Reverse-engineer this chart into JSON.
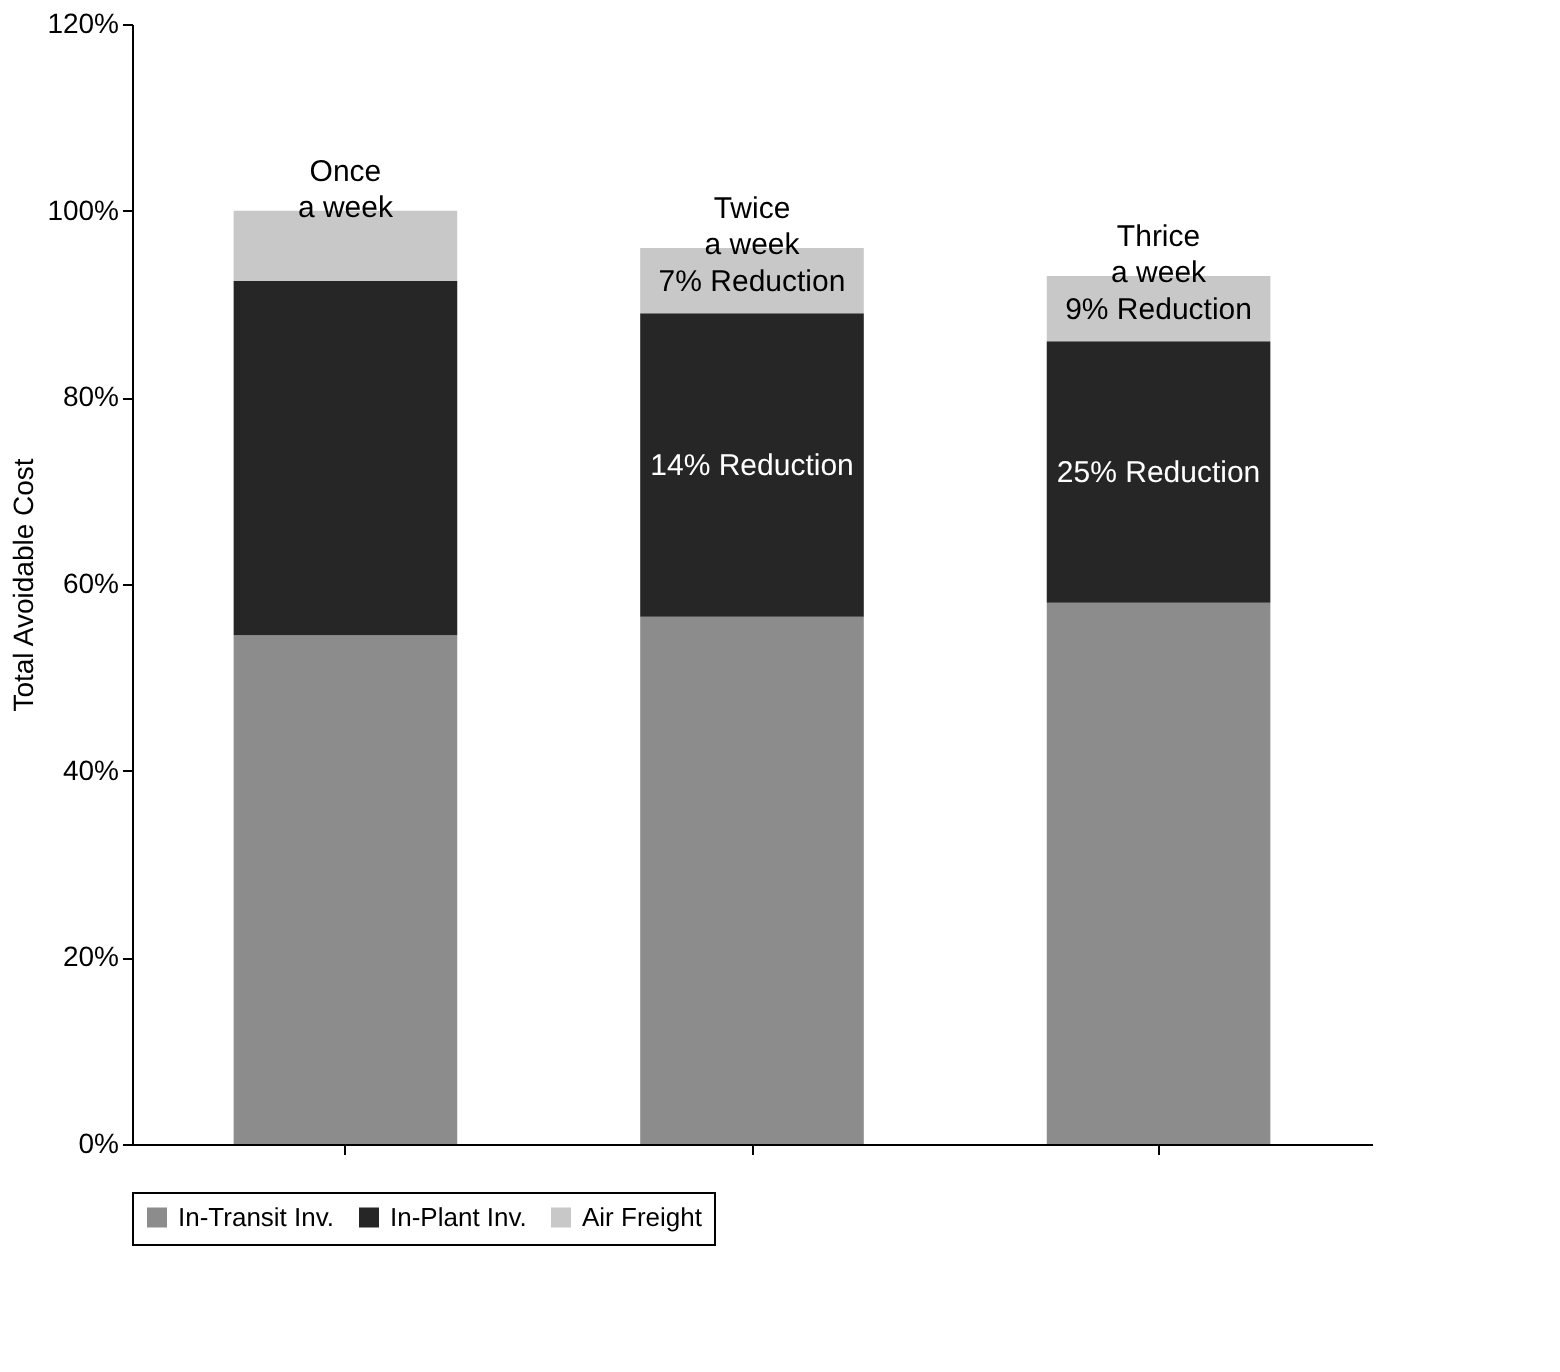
{
  "chart_data": {
    "type": "bar",
    "stacked": true,
    "ylabel": "Total Avoidable Cost",
    "categories": [
      "Once a week",
      "Twice a week",
      "Thrice a week"
    ],
    "series": [
      {
        "name": "In-Transit Inv.",
        "color": "#8c8c8c",
        "values": [
          54.5,
          56.5,
          58
        ]
      },
      {
        "name": "In-Plant Inv.",
        "color": "#262626",
        "values": [
          38,
          32.5,
          28
        ]
      },
      {
        "name": "Air Freight",
        "color": "#c8c8c8",
        "values": [
          7.5,
          7,
          7
        ]
      }
    ],
    "ylim": [
      0,
      120
    ],
    "yticks": [
      {
        "value": 0,
        "label": "0%"
      },
      {
        "value": 20,
        "label": "20%"
      },
      {
        "value": 40,
        "label": "40%"
      },
      {
        "value": 60,
        "label": "60%"
      },
      {
        "value": 80,
        "label": "80%"
      },
      {
        "value": 100,
        "label": "100%"
      },
      {
        "value": 120,
        "label": "120%"
      }
    ],
    "annotations": [
      "7% Reduction",
      "14% Reduction",
      "9% Reduction",
      "25% Reduction"
    ],
    "grid": false,
    "legend": "bottom"
  }
}
